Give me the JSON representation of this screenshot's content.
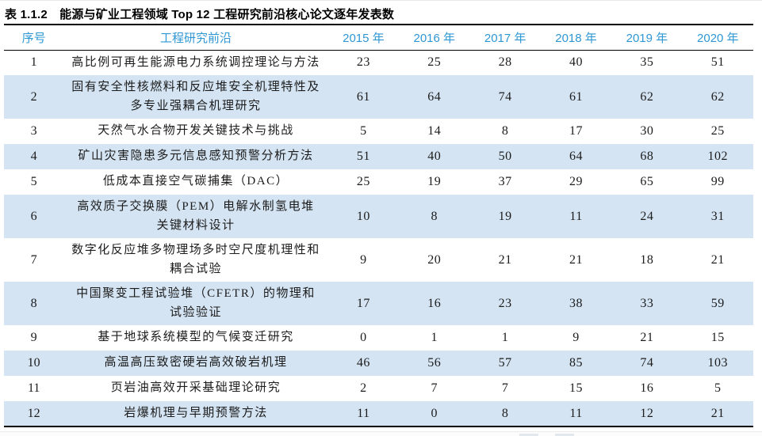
{
  "title": "表 1.1.2　能源与矿业工程领域 Top 12 工程研究前沿核心论文逐年发表数",
  "colors": {
    "header_text": "#2e97d4",
    "row_alt_bg": "#d4e4f3",
    "border": "#000000",
    "body_text": "#1c1c1c"
  },
  "table": {
    "headers": {
      "no": "序号",
      "frontier": "工程研究前沿",
      "years": [
        "2015 年",
        "2016 年",
        "2017 年",
        "2018 年",
        "2019 年",
        "2020 年"
      ]
    },
    "rows": [
      {
        "no": "1",
        "frontier": "高比例可再生能源电力系统调控理论与方法",
        "values": [
          "23",
          "25",
          "28",
          "40",
          "35",
          "51"
        ]
      },
      {
        "no": "2",
        "frontier": "固有安全性核燃料和反应堆安全机理特性及\n多专业强耦合机理研究",
        "values": [
          "61",
          "64",
          "74",
          "61",
          "62",
          "62"
        ]
      },
      {
        "no": "3",
        "frontier": "天然气水合物开发关键技术与挑战",
        "values": [
          "5",
          "14",
          "8",
          "17",
          "30",
          "25"
        ]
      },
      {
        "no": "4",
        "frontier": "矿山灾害隐患多元信息感知预警分析方法",
        "values": [
          "51",
          "40",
          "50",
          "64",
          "68",
          "102"
        ]
      },
      {
        "no": "5",
        "frontier": "低成本直接空气碳捕集（DAC）",
        "values": [
          "25",
          "19",
          "37",
          "29",
          "65",
          "99"
        ]
      },
      {
        "no": "6",
        "frontier": "高效质子交换膜（PEM）电解水制氢电堆\n关键材料设计",
        "values": [
          "10",
          "8",
          "19",
          "11",
          "24",
          "31"
        ]
      },
      {
        "no": "7",
        "frontier": "数字化反应堆多物理场多时空尺度机理性和\n耦合试验",
        "values": [
          "9",
          "20",
          "21",
          "21",
          "18",
          "21"
        ]
      },
      {
        "no": "8",
        "frontier": "中国聚变工程试验堆（CFETR）的物理和\n试验验证",
        "values": [
          "17",
          "16",
          "23",
          "38",
          "33",
          "59"
        ]
      },
      {
        "no": "9",
        "frontier": "基于地球系统模型的气候变迁研究",
        "values": [
          "0",
          "1",
          "1",
          "9",
          "21",
          "15"
        ]
      },
      {
        "no": "10",
        "frontier": "高温高压致密硬岩高效破岩机理",
        "values": [
          "46",
          "56",
          "57",
          "85",
          "74",
          "103"
        ]
      },
      {
        "no": "11",
        "frontier": "页岩油高效开采基础理论研究",
        "values": [
          "2",
          "7",
          "7",
          "15",
          "16",
          "5"
        ]
      },
      {
        "no": "12",
        "frontier": "岩爆机理与早期预警方法",
        "values": [
          "11",
          "0",
          "8",
          "11",
          "12",
          "21"
        ]
      }
    ]
  }
}
